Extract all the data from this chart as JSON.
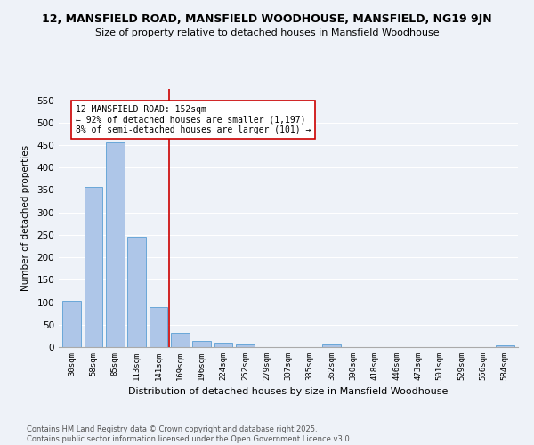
{
  "title": "12, MANSFIELD ROAD, MANSFIELD WOODHOUSE, MANSFIELD, NG19 9JN",
  "subtitle": "Size of property relative to detached houses in Mansfield Woodhouse",
  "xlabel": "Distribution of detached houses by size in Mansfield Woodhouse",
  "ylabel": "Number of detached properties",
  "bar_color": "#aec6e8",
  "bar_edge_color": "#5a9fd4",
  "categories": [
    "30sqm",
    "58sqm",
    "85sqm",
    "113sqm",
    "141sqm",
    "169sqm",
    "196sqm",
    "224sqm",
    "252sqm",
    "279sqm",
    "307sqm",
    "335sqm",
    "362sqm",
    "390sqm",
    "418sqm",
    "446sqm",
    "473sqm",
    "501sqm",
    "529sqm",
    "556sqm",
    "584sqm"
  ],
  "values": [
    104,
    357,
    456,
    245,
    90,
    32,
    14,
    9,
    5,
    0,
    0,
    0,
    6,
    0,
    0,
    0,
    0,
    0,
    0,
    0,
    4
  ],
  "ylim": [
    0,
    575
  ],
  "yticks": [
    0,
    50,
    100,
    150,
    200,
    250,
    300,
    350,
    400,
    450,
    500,
    550
  ],
  "vline_x": 4.5,
  "vline_color": "#cc0000",
  "annotation_text": "12 MANSFIELD ROAD: 152sqm\n← 92% of detached houses are smaller (1,197)\n8% of semi-detached houses are larger (101) →",
  "annotation_box_color": "#ffffff",
  "annotation_box_edge": "#cc0000",
  "footer_line1": "Contains HM Land Registry data © Crown copyright and database right 2025.",
  "footer_line2": "Contains public sector information licensed under the Open Government Licence v3.0.",
  "bg_color": "#eef2f8",
  "grid_color": "#ffffff",
  "title_fontsize": 9,
  "subtitle_fontsize": 8
}
